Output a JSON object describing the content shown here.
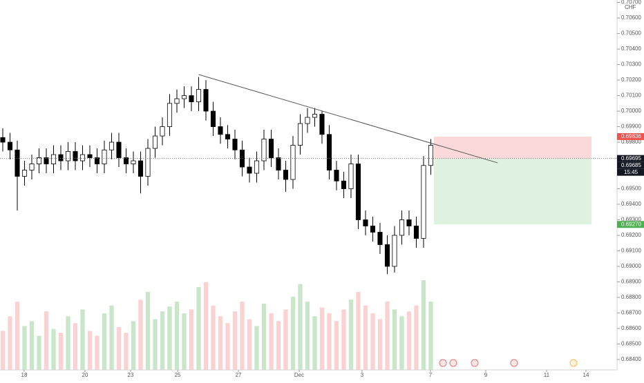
{
  "chart_data": {
    "type": "candlestick",
    "currency": "CHF",
    "x": [
      0,
      1,
      2,
      3,
      4,
      5,
      6,
      7,
      8,
      9,
      10,
      11,
      12,
      13,
      14,
      15,
      16,
      17,
      18,
      19,
      20,
      21,
      22,
      23,
      24,
      25,
      26,
      27,
      28,
      29,
      30,
      31,
      32,
      33,
      34,
      35,
      36,
      37,
      38,
      39,
      40,
      41,
      42,
      43,
      44,
      45,
      46,
      47,
      48,
      49,
      50,
      51,
      52,
      53,
      54,
      55,
      56,
      57,
      58,
      59
    ],
    "open": [
      0.6983,
      0.698,
      0.6975,
      0.6958,
      0.6962,
      0.6966,
      0.697,
      0.6966,
      0.6972,
      0.6968,
      0.6974,
      0.6968,
      0.6972,
      0.697,
      0.6966,
      0.6975,
      0.698,
      0.697,
      0.6966,
      0.6968,
      0.6958,
      0.6976,
      0.6984,
      0.699,
      0.7005,
      0.7008,
      0.701,
      0.7006,
      0.7014,
      0.7,
      0.699,
      0.6985,
      0.6982,
      0.6975,
      0.6964,
      0.696,
      0.6968,
      0.6982,
      0.697,
      0.6962,
      0.6956,
      0.6978,
      0.6992,
      0.6996,
      0.6998,
      0.6985,
      0.6962,
      0.6955,
      0.695,
      0.6966,
      0.693,
      0.6926,
      0.6922,
      0.6914,
      0.69,
      0.692,
      0.693,
      0.6926,
      0.6918,
      0.6965
    ],
    "high": [
      0.6989,
      0.6986,
      0.6981,
      0.6968,
      0.6972,
      0.6976,
      0.6976,
      0.6978,
      0.6978,
      0.698,
      0.698,
      0.6978,
      0.6978,
      0.6976,
      0.6981,
      0.6986,
      0.6986,
      0.6976,
      0.6974,
      0.6974,
      0.6982,
      0.699,
      0.6996,
      0.7011,
      0.7014,
      0.7016,
      0.7016,
      0.7022,
      0.702,
      0.7006,
      0.6996,
      0.6991,
      0.6988,
      0.6981,
      0.697,
      0.6974,
      0.6988,
      0.6988,
      0.6976,
      0.6968,
      0.6984,
      0.6998,
      0.7002,
      0.7002,
      0.7,
      0.6991,
      0.6968,
      0.6961,
      0.6972,
      0.6972,
      0.6936,
      0.6932,
      0.6928,
      0.692,
      0.6926,
      0.6936,
      0.6936,
      0.6932,
      0.6971,
      0.6982
    ],
    "low": [
      0.6974,
      0.6969,
      0.6936,
      0.6952,
      0.6956,
      0.696,
      0.696,
      0.696,
      0.6962,
      0.6962,
      0.6962,
      0.6962,
      0.6964,
      0.696,
      0.696,
      0.6969,
      0.6964,
      0.696,
      0.696,
      0.6947,
      0.6952,
      0.697,
      0.6978,
      0.6984,
      0.6999,
      0.7002,
      0.7,
      0.7,
      0.6994,
      0.6984,
      0.6979,
      0.6976,
      0.6969,
      0.6958,
      0.6954,
      0.6954,
      0.6962,
      0.6964,
      0.6956,
      0.6948,
      0.695,
      0.6972,
      0.6986,
      0.699,
      0.6979,
      0.6956,
      0.6949,
      0.6944,
      0.6944,
      0.6924,
      0.692,
      0.6916,
      0.6908,
      0.6895,
      0.6896,
      0.6914,
      0.692,
      0.6912,
      0.6912,
      0.6959
    ],
    "close": [
      0.698,
      0.6975,
      0.6958,
      0.6962,
      0.6966,
      0.697,
      0.6966,
      0.6972,
      0.6968,
      0.6974,
      0.6968,
      0.6972,
      0.697,
      0.6966,
      0.6975,
      0.698,
      0.697,
      0.6966,
      0.6968,
      0.6958,
      0.6976,
      0.6984,
      0.699,
      0.7005,
      0.7008,
      0.701,
      0.7006,
      0.7014,
      0.7,
      0.699,
      0.6985,
      0.6982,
      0.6975,
      0.6964,
      0.696,
      0.6968,
      0.6982,
      0.697,
      0.6962,
      0.6956,
      0.6978,
      0.6992,
      0.6996,
      0.6998,
      0.6985,
      0.6962,
      0.6955,
      0.695,
      0.6966,
      0.693,
      0.6926,
      0.6922,
      0.6914,
      0.69,
      0.692,
      0.693,
      0.6926,
      0.6918,
      0.6965,
      0.6978
    ],
    "volume": [
      40,
      55,
      70,
      45,
      50,
      35,
      60,
      42,
      38,
      55,
      48,
      62,
      40,
      35,
      58,
      66,
      44,
      38,
      50,
      72,
      80,
      52,
      60,
      65,
      70,
      58,
      62,
      85,
      90,
      66,
      55,
      48,
      60,
      70,
      52,
      45,
      68,
      58,
      50,
      62,
      75,
      88,
      70,
      55,
      64,
      58,
      50,
      62,
      72,
      80,
      66,
      58,
      52,
      70,
      62,
      55,
      60,
      66,
      92,
      70
    ],
    "up_color": "#ffffff",
    "down_color": "#000000",
    "volume_up_color": "#a5d6a7",
    "volume_down_color": "#f7b4b4",
    "xlim": [
      -0.381,
      84.67
    ],
    "xticks": [
      {
        "value": 2.95,
        "label": "18"
      },
      {
        "value": 11.33,
        "label": "20"
      },
      {
        "value": 17.62,
        "label": "23"
      },
      {
        "value": 24.1,
        "label": "25"
      },
      {
        "value": 32.48,
        "label": "27"
      },
      {
        "value": 40.86,
        "label": "Dec"
      },
      {
        "value": 49.52,
        "label": "3"
      },
      {
        "value": 58.95,
        "label": "7"
      },
      {
        "value": 66.57,
        "label": "9"
      },
      {
        "value": 74.95,
        "label": "11"
      },
      {
        "value": 80.38,
        "label": "14"
      }
    ],
    "ylim": [
      0.68333,
      0.70716
    ],
    "yticks": [
      {
        "value": 0.707,
        "label": "0.70700"
      },
      {
        "value": 0.706,
        "label": "0.70600"
      },
      {
        "value": 0.705,
        "label": "0.70500"
      },
      {
        "value": 0.704,
        "label": "0.70400"
      },
      {
        "value": 0.703,
        "label": "0.70300"
      },
      {
        "value": 0.702,
        "label": "0.70200"
      },
      {
        "value": 0.701,
        "label": "0.70100"
      },
      {
        "value": 0.7,
        "label": "0.70000"
      },
      {
        "value": 0.699,
        "label": "0.69900"
      },
      {
        "value": 0.698,
        "label": "0.69800"
      },
      {
        "value": 0.695,
        "label": "0.69500"
      },
      {
        "value": 0.694,
        "label": "0.69400"
      },
      {
        "value": 0.693,
        "label": "0.69300"
      },
      {
        "value": 0.692,
        "label": "0.69200"
      },
      {
        "value": 0.691,
        "label": "0.69100"
      },
      {
        "value": 0.69,
        "label": "0.69000"
      },
      {
        "value": 0.689,
        "label": "0.68900"
      },
      {
        "value": 0.688,
        "label": "0.68800"
      },
      {
        "value": 0.687,
        "label": "0.68700"
      },
      {
        "value": 0.686,
        "label": "0.68600"
      },
      {
        "value": 0.685,
        "label": "0.68500"
      },
      {
        "value": 0.684,
        "label": "0.68400"
      }
    ],
    "trendline": {
      "x": [
        27,
        68.2
      ],
      "y": [
        0.70236,
        0.69667
      ]
    },
    "position": {
      "x": [
        59.43,
        81.14
      ],
      "stop": 0.69836,
      "entry": 0.69695,
      "target": 0.6927
    },
    "price_labels": [
      {
        "value": 0.69836,
        "label": "0.69836",
        "color": "#ef5350"
      },
      {
        "value": 0.69695,
        "label": "0.69695",
        "color": "#131722"
      },
      {
        "value": 0.69685,
        "label": "0.69685",
        "color": "#131722"
      },
      {
        "value": 0.6927,
        "label": "0.69270",
        "color": "#4caf50"
      }
    ],
    "countdown": "15:45"
  }
}
